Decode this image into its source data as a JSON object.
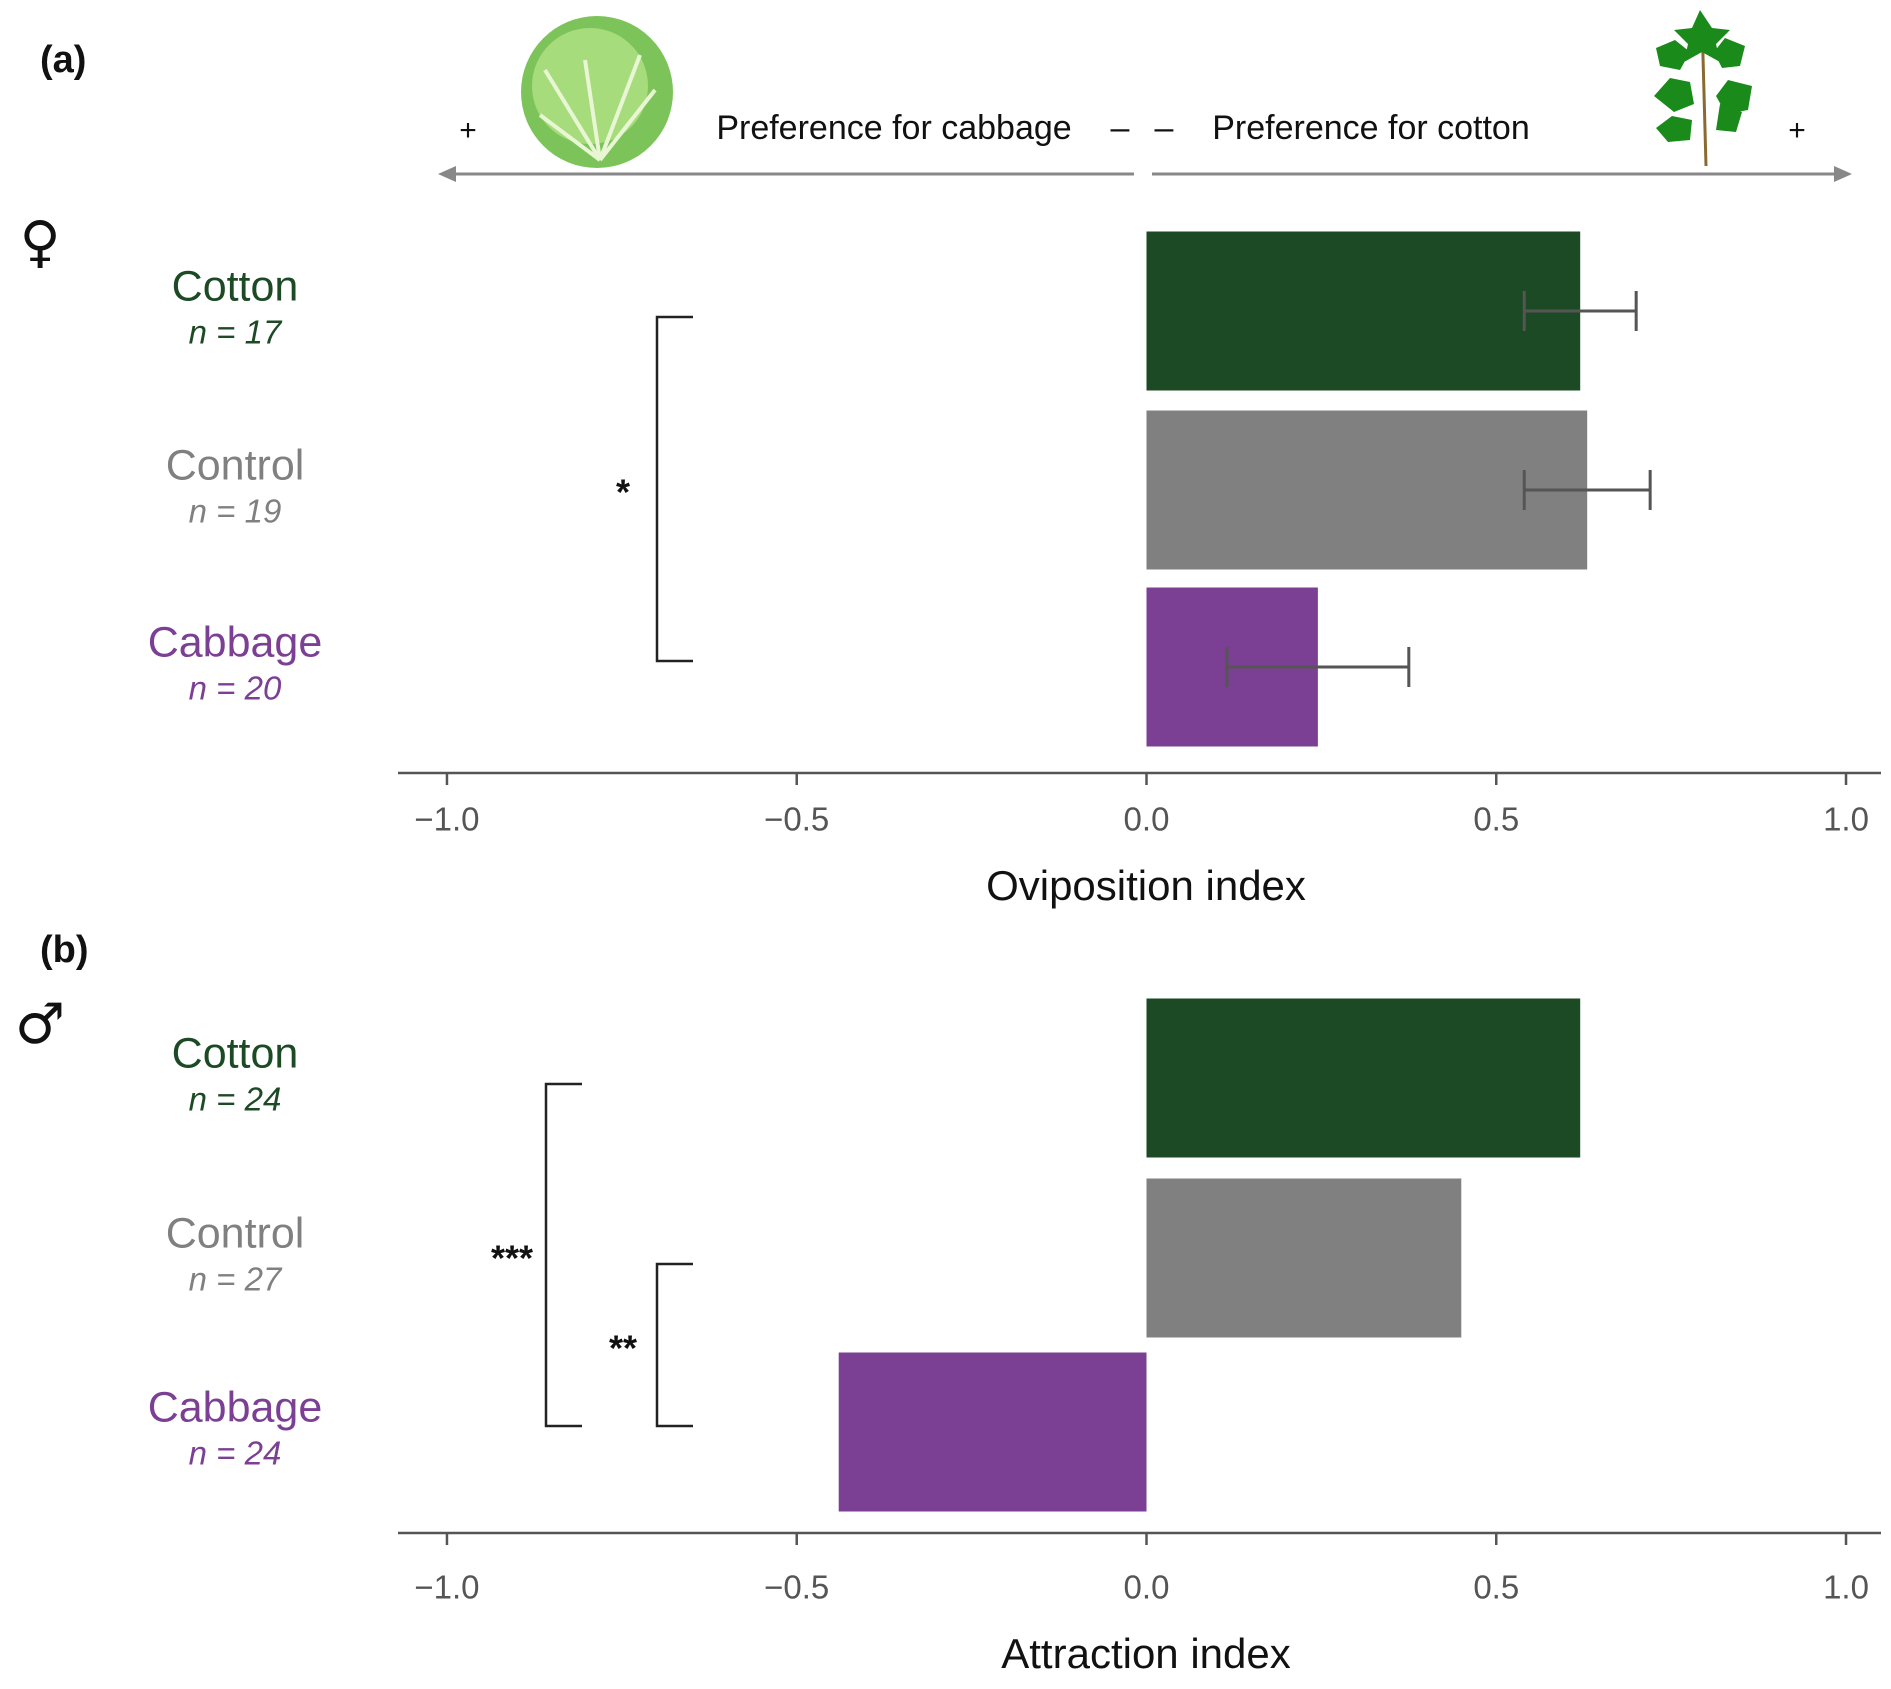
{
  "chart_data": [
    {
      "type": "bar",
      "panel": "(a)",
      "sex": "♀",
      "direction_labels": [
        "Preference for cabbage",
        "Preference for cotton"
      ],
      "direction_marks": [
        "+",
        "–"
      ],
      "categories": [
        "Cotton",
        "Control",
        "Cabbage"
      ],
      "n_labels": [
        "n = 17",
        "n = 19",
        "n = 20"
      ],
      "colors": [
        "#1c4a24",
        "#808080",
        "#7b3f94"
      ],
      "values": [
        0.62,
        0.63,
        0.245
      ],
      "errors": [
        0.08,
        0.09,
        0.13
      ],
      "significance": [
        {
          "label": "*",
          "between": [
            "Cotton",
            "Cabbage"
          ]
        }
      ],
      "xlabel": "Oviposition index",
      "xlim": [
        -1.07,
        1.05
      ],
      "xticks": [
        {
          "value": -1.0,
          "label": "−1.0"
        },
        {
          "value": -0.5,
          "label": "−0.5"
        },
        {
          "value": 0,
          "label": "0.0"
        },
        0.5,
        {
          "value": 1.0,
          "label": "1.0"
        }
      ]
    },
    {
      "type": "bar",
      "panel": "(b)",
      "sex": "♂",
      "categories": [
        "Cotton",
        "Control",
        "Cabbage"
      ],
      "n_labels": [
        "n =  24",
        "n = 27",
        "n = 24"
      ],
      "colors": [
        "#1c4a24",
        "#808080",
        "#7b3f94"
      ],
      "values": [
        0.62,
        0.45,
        -0.44
      ],
      "significance": [
        {
          "label": "***",
          "between": [
            "Cotton",
            "Cabbage"
          ]
        },
        {
          "label": "**",
          "between": [
            "Control",
            "Cabbage"
          ]
        }
      ],
      "xlabel": "Attraction index",
      "xlim": [
        -1.07,
        1.05
      ],
      "xticks": [
        {
          "value": -1.0,
          "label": "−1.0"
        },
        {
          "value": -0.5,
          "label": "−0.5"
        },
        {
          "value": 0,
          "label": "0.0"
        },
        0.5,
        {
          "value": 1.0,
          "label": "1.0"
        }
      ]
    }
  ]
}
